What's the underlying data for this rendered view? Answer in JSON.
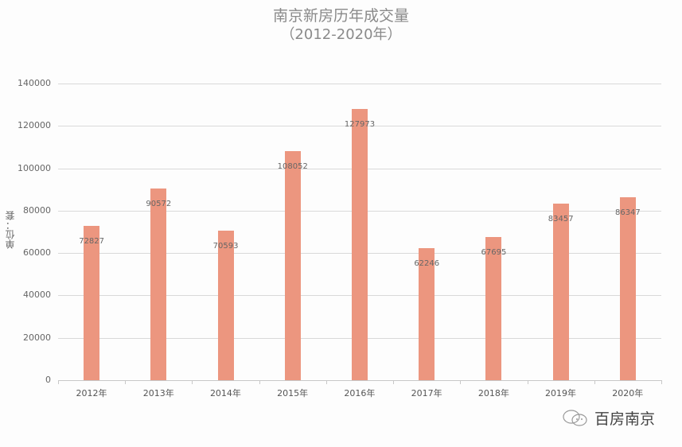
{
  "chart_data": {
    "type": "bar",
    "title": "南京新房历年成交量",
    "subtitle": "（2012-2020年）",
    "xlabel": "",
    "ylabel": "单位：套",
    "categories": [
      "2012年",
      "2013年",
      "2014年",
      "2015年",
      "2016年",
      "2017年",
      "2018年",
      "2019年",
      "2020年"
    ],
    "values": [
      72827,
      90572,
      70593,
      108052,
      127973,
      62246,
      67695,
      83457,
      86347
    ],
    "ylim": [
      0,
      140000
    ],
    "yticks": [
      0,
      20000,
      40000,
      60000,
      80000,
      100000,
      120000,
      140000
    ],
    "grid": true,
    "legend": null,
    "bar_color": "#ec967f",
    "data_labels": true
  },
  "watermark": {
    "icon": "wechat-icon",
    "text": "百房南京"
  }
}
